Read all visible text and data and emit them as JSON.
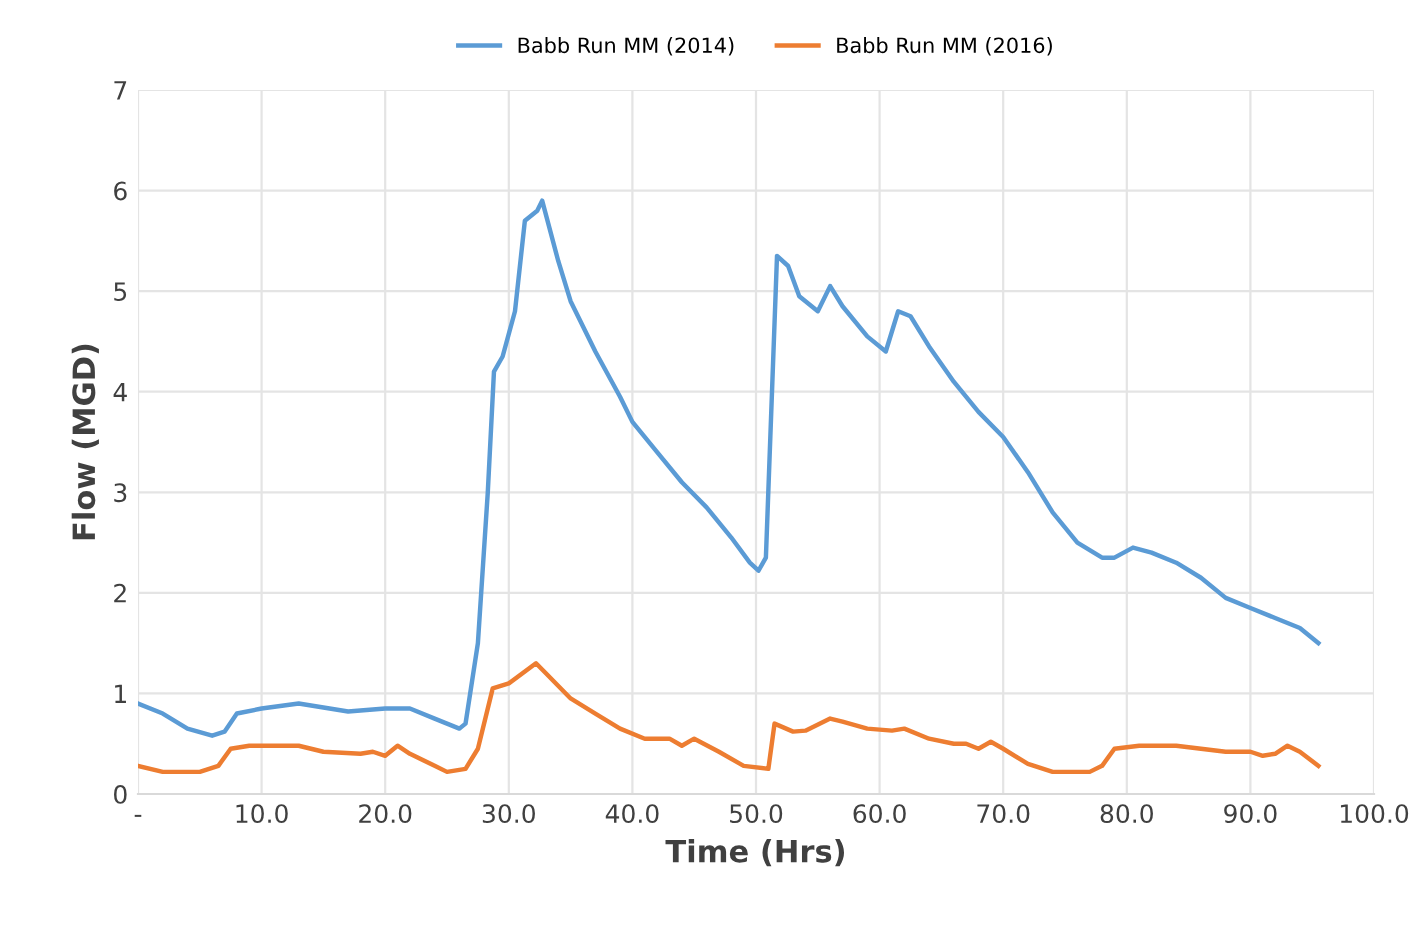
{
  "chart_data": {
    "type": "line",
    "xlabel": "Time (Hrs)",
    "ylabel": "Flow (MGD)",
    "xlim": [
      0,
      100
    ],
    "xticks": [
      {
        "value": 0,
        "label": "-"
      },
      {
        "value": 10,
        "label": "10.0"
      },
      {
        "value": 20,
        "label": "20.0"
      },
      {
        "value": 30,
        "label": "30.0"
      },
      {
        "value": 40,
        "label": "40.0"
      },
      {
        "value": 50,
        "label": "50.0"
      },
      {
        "value": 60,
        "label": "60.0"
      },
      {
        "value": 70,
        "label": "70.0"
      },
      {
        "value": 80,
        "label": "80.0"
      },
      {
        "value": 90,
        "label": "90.0"
      },
      {
        "value": 100,
        "label": "100.0"
      }
    ],
    "ylim": [
      0,
      7
    ],
    "yticks": [
      0,
      1,
      2,
      3,
      4,
      5,
      6,
      7
    ],
    "grid": true,
    "legend": "top",
    "marker": "none",
    "line_style": "solid",
    "series": [
      {
        "name": "Babb Run MM (2014)",
        "color": "#5b9bd5",
        "x": [
          0,
          2,
          4,
          6,
          7,
          8,
          10,
          13,
          17,
          20,
          22,
          24,
          26,
          26.5,
          27.5,
          28.3,
          28.8,
          29.5,
          30.5,
          31.3,
          32.3,
          32.7,
          34,
          35,
          37,
          39,
          40,
          42,
          44,
          46,
          48,
          49.5,
          50.2,
          50.8,
          51.7,
          52.6,
          53.5,
          55,
          56,
          57,
          59,
          60.5,
          61.5,
          62.5,
          64,
          66,
          68,
          70,
          72,
          74,
          76,
          78,
          79,
          80.5,
          82,
          84,
          86,
          88,
          90,
          92,
          94,
          95.5
        ],
        "values": [
          0.9,
          0.8,
          0.65,
          0.58,
          0.62,
          0.8,
          0.85,
          0.9,
          0.82,
          0.85,
          0.85,
          0.75,
          0.65,
          0.7,
          1.5,
          3.0,
          4.2,
          4.35,
          4.8,
          5.7,
          5.8,
          5.9,
          5.3,
          4.9,
          4.4,
          3.95,
          3.7,
          3.4,
          3.1,
          2.85,
          2.55,
          2.3,
          2.22,
          2.35,
          5.35,
          5.25,
          4.95,
          4.8,
          5.05,
          4.85,
          4.55,
          4.4,
          4.8,
          4.75,
          4.45,
          4.1,
          3.8,
          3.55,
          3.2,
          2.8,
          2.5,
          2.35,
          2.35,
          2.45,
          2.4,
          2.3,
          2.15,
          1.95,
          1.85,
          1.75,
          1.65,
          1.5
        ]
      },
      {
        "name": "Babb Run MM (2016)",
        "color": "#ed7d31",
        "x": [
          0,
          2,
          5,
          6.5,
          7.5,
          9,
          13,
          15,
          18,
          19,
          20,
          21,
          22,
          24,
          25,
          26.5,
          27.5,
          28.7,
          30,
          32.2,
          33,
          35,
          37,
          39,
          41,
          43,
          44,
          45,
          47,
          49,
          51,
          51.5,
          53,
          54,
          56,
          57,
          59,
          61,
          62,
          64,
          66,
          67,
          68,
          69,
          70,
          72,
          74,
          77,
          78,
          79,
          81,
          84,
          86,
          88,
          90,
          91,
          92,
          93,
          94,
          95.5
        ],
        "values": [
          0.28,
          0.22,
          0.22,
          0.28,
          0.45,
          0.48,
          0.48,
          0.42,
          0.4,
          0.42,
          0.38,
          0.48,
          0.4,
          0.28,
          0.22,
          0.25,
          0.45,
          1.05,
          1.1,
          1.3,
          1.2,
          0.95,
          0.8,
          0.65,
          0.55,
          0.55,
          0.48,
          0.55,
          0.42,
          0.28,
          0.25,
          0.7,
          0.62,
          0.63,
          0.75,
          0.72,
          0.65,
          0.63,
          0.65,
          0.55,
          0.5,
          0.5,
          0.45,
          0.52,
          0.45,
          0.3,
          0.22,
          0.22,
          0.28,
          0.45,
          0.48,
          0.48,
          0.45,
          0.42,
          0.42,
          0.38,
          0.4,
          0.48,
          0.42,
          0.28
        ]
      }
    ]
  }
}
